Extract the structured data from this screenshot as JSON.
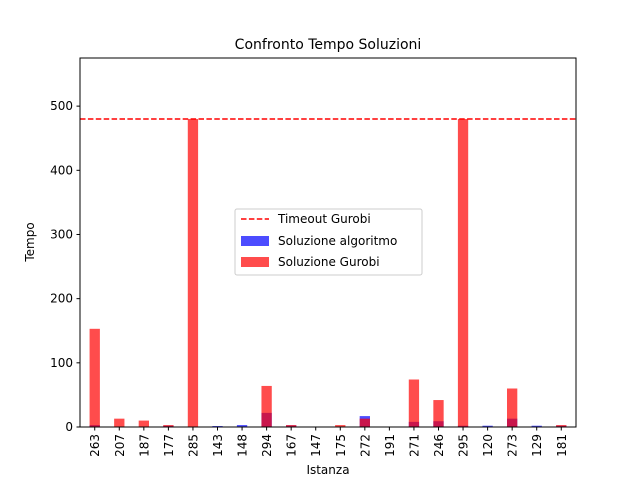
{
  "chart_data": {
    "type": "bar",
    "title": "Confronto Tempo Soluzioni",
    "xlabel": "Istanza",
    "ylabel": "Tempo",
    "ylim": [
      0,
      575
    ],
    "yticks": [
      0,
      100,
      200,
      300,
      400,
      500
    ],
    "categories": [
      "263",
      "207",
      "187",
      "177",
      "285",
      "143",
      "148",
      "294",
      "167",
      "147",
      "175",
      "272",
      "191",
      "271",
      "246",
      "295",
      "120",
      "273",
      "129",
      "181"
    ],
    "series": [
      {
        "name": "Soluzione algoritmo",
        "color": "#0000ff",
        "opacity": 0.7,
        "values": [
          3,
          0.3,
          0.3,
          2,
          0.5,
          1.5,
          3,
          22,
          2.5,
          0.3,
          0.5,
          17,
          0.3,
          8,
          9,
          2,
          2,
          13,
          2,
          2
        ]
      },
      {
        "name": "Soluzione Gurobi",
        "color": "#ff0000",
        "opacity": 0.7,
        "values": [
          153,
          13,
          10,
          3,
          480,
          0.3,
          0.3,
          64,
          3,
          0.3,
          3,
          13,
          0.3,
          74,
          42,
          480,
          0.3,
          60,
          0.3,
          3
        ]
      }
    ],
    "reference_line": {
      "name": "Timeout Gurobi",
      "value": 480,
      "color": "#ff0000",
      "style": "dashed"
    },
    "legend_position": "center",
    "grid": false
  }
}
